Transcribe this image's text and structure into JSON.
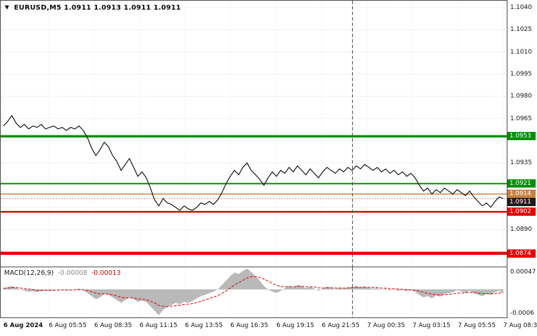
{
  "header": {
    "symbol": "EURUSD,M5",
    "ohlc": "1.0911 1.0913 1.0911 1.0911",
    "expand_icon": "▼"
  },
  "chart_data": {
    "type": "line",
    "symbol": "EURUSD",
    "timeframe": "M5",
    "ohlc": {
      "open": "1.0911",
      "high": "1.0913",
      "low": "1.0911",
      "close": "1.0911"
    },
    "ylim": [
      1.0865,
      1.10446
    ],
    "yticks": [
      {
        "v": 1.104,
        "label": "1.1040"
      },
      {
        "v": 1.1025,
        "label": "1.1025"
      },
      {
        "v": 1.101,
        "label": "1.1010"
      },
      {
        "v": 1.0995,
        "label": "1.0995"
      },
      {
        "v": 1.098,
        "label": "1.0980"
      },
      {
        "v": 1.0965,
        "label": "1.0965"
      },
      {
        "v": 1.095,
        "label": ""
      },
      {
        "v": 1.0935,
        "label": "1.0935"
      },
      {
        "v": 1.092,
        "label": ""
      },
      {
        "v": 1.0905,
        "label": ""
      },
      {
        "v": 1.089,
        "label": "1.0890"
      },
      {
        "v": 1.0875,
        "label": ""
      }
    ],
    "x_labels": [
      "6 Aug 2024",
      "6 Aug 05:55",
      "6 Aug 08:35",
      "6 Aug 11:15",
      "6 Aug 13:55",
      "6 Aug 16:35",
      "6 Aug 19:15",
      "6 Aug 21:55",
      "7 Aug 00:35",
      "7 Aug 03:15",
      "7 Aug 05:55",
      "7 Aug 08:35"
    ],
    "levels": [
      {
        "value": 1.0953,
        "label": "1.0953",
        "color": "#009000",
        "width": 3.5,
        "role": "resistance"
      },
      {
        "value": 1.0921,
        "label": "1.0921",
        "color": "#009000",
        "width": 2,
        "role": "resistance"
      },
      {
        "value": 1.0914,
        "label": "1.0914",
        "color": "#c8813f",
        "width": 1.5,
        "role": "trend"
      },
      {
        "value": 1.0902,
        "label": "1.0902",
        "color": "#e60000",
        "width": 2.5,
        "role": "support"
      },
      {
        "value": 1.0874,
        "label": "1.0874",
        "color": "#e60000",
        "width": 4.5,
        "role": "support"
      }
    ],
    "current_price": {
      "value": 1.0911,
      "label": "1.0911",
      "color": "#1c1c1c"
    },
    "day_separator_x_frac": 0.695,
    "prices": [
      1.096,
      1.0963,
      1.0967,
      1.0962,
      1.0959,
      1.0961,
      1.0958,
      1.096,
      1.0959,
      1.0961,
      1.0958,
      1.0959,
      1.096,
      1.0958,
      1.0959,
      1.0957,
      1.0959,
      1.0958,
      1.096,
      1.0957,
      1.0952,
      1.0945,
      1.094,
      1.0944,
      1.0949,
      1.0946,
      1.094,
      1.0936,
      1.093,
      1.0934,
      1.0938,
      1.0932,
      1.0926,
      1.0929,
      1.0925,
      1.0918,
      1.091,
      1.0906,
      1.0911,
      1.0908,
      1.0907,
      1.0905,
      1.0903,
      1.0906,
      1.0904,
      1.0903,
      1.0905,
      1.0908,
      1.0907,
      1.0909,
      1.0907,
      1.091,
      1.0915,
      1.0921,
      1.0926,
      1.093,
      1.0927,
      1.0932,
      1.0935,
      1.093,
      1.0927,
      1.0924,
      1.092,
      1.0925,
      1.0929,
      1.0926,
      1.093,
      1.0928,
      1.0932,
      1.0929,
      1.0933,
      1.093,
      1.0927,
      1.0931,
      1.0928,
      1.0925,
      1.0929,
      1.0932,
      1.093,
      1.0928,
      1.0931,
      1.0929,
      1.0932,
      1.093,
      1.0933,
      1.0931,
      1.0934,
      1.0932,
      1.093,
      1.0932,
      1.0929,
      1.0931,
      1.0928,
      1.093,
      1.0927,
      1.0929,
      1.0926,
      1.0928,
      1.0925,
      1.092,
      1.0916,
      1.0918,
      1.0914,
      1.0917,
      1.0915,
      1.0918,
      1.0916,
      1.0914,
      1.0917,
      1.0915,
      1.0913,
      1.0916,
      1.0912,
      1.0909,
      1.0906,
      1.0908,
      1.0905,
      1.0909,
      1.0912,
      1.0911
    ],
    "colors": {
      "price_line": "#000000",
      "grid_h": "#cdcdcd",
      "grid_v": "#e3e3e3",
      "separator": "#4a4a4a"
    },
    "macd": {
      "label": "MACD(12,26,9)",
      "value_main": "-0.00008",
      "value_signal": "-0.00013",
      "ylim": [
        -0.00063,
        0.0005
      ],
      "yticks": [
        {
          "v": 0.00047,
          "label": "0.00047"
        },
        {
          "v": -0.0006,
          "label": "-0.0006"
        }
      ],
      "signal_period": 9,
      "colors": {
        "histogram": "#b9b9b9",
        "signal": "#d40000",
        "zero": "#bcbcbc"
      },
      "values": [
        3e-05,
        5e-05,
        8e-05,
        4e-05,
        0.0,
        -3e-05,
        -5e-05,
        -4e-05,
        -6e-05,
        -4e-05,
        -2e-05,
        -3e-05,
        -1e-05,
        1e-05,
        0.0,
        -2e-05,
        -1e-05,
        0.0,
        2e-05,
        -2e-05,
        -8e-05,
        -0.00015,
        -0.00022,
        -0.00018,
        -0.0001,
        -0.00012,
        -0.00018,
        -0.00024,
        -0.0003,
        -0.00024,
        -0.00018,
        -0.00022,
        -0.00028,
        -0.00025,
        -0.00028,
        -0.00038,
        -0.00048,
        -0.00058,
        -0.00046,
        -0.0004,
        -0.00035,
        -0.0003,
        -0.00033,
        -0.00028,
        -0.0003,
        -0.00026,
        -0.0002,
        -0.00015,
        -0.00012,
        -8e-05,
        -5e-05,
        0.0,
        0.0001,
        0.0002,
        0.0003,
        0.00038,
        0.00035,
        0.00042,
        0.00047,
        0.0004,
        0.0003,
        0.0002,
        8e-05,
        0.0,
        -5e-05,
        -8e-05,
        -3e-05,
        3e-05,
        8e-05,
        5e-05,
        0.0001,
        8e-05,
        3e-05,
        6e-05,
        2e-05,
        -3e-05,
        2e-05,
        6e-05,
        4e-05,
        1e-05,
        4e-05,
        2e-05,
        5e-05,
        6e-05,
        8e-05,
        5e-05,
        7e-05,
        4e-05,
        2e-05,
        3e-05,
        0.0,
        2e-05,
        -2e-05,
        0.0,
        -3e-05,
        -1e-05,
        -4e-05,
        -2e-05,
        -5e-05,
        -0.00012,
        -0.00018,
        -0.00015,
        -0.0002,
        -0.00014,
        -0.00016,
        -0.0001,
        -8e-05,
        -6e-05,
        -2e-05,
        -4e-05,
        -8e-05,
        -3e-05,
        -8e-05,
        -0.00012,
        -0.00015,
        -0.0001,
        -0.00012,
        -6e-05,
        -3e-05,
        -8e-05
      ]
    }
  }
}
